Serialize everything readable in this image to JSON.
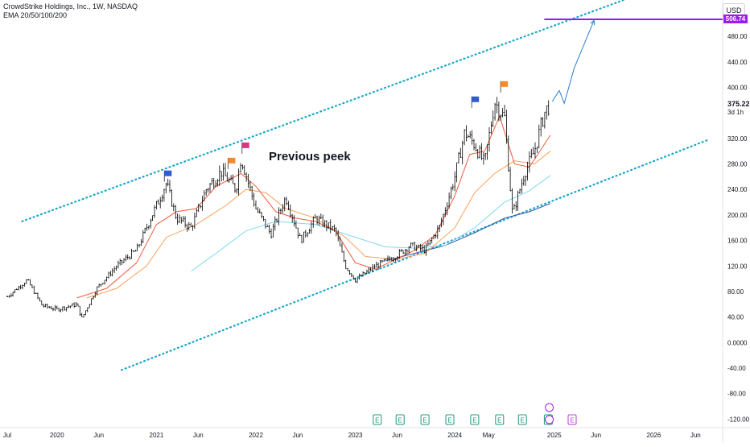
{
  "header": {
    "title": "CrowdStrike Holdings, Inc., 1W, NASDAQ",
    "indicator": "EMA 20/50/100/200"
  },
  "currency": "USD",
  "last_price": "375.22",
  "last_price_sub": "3d 1h",
  "target_price": "506.74",
  "annotation": "Previous peek",
  "colors": {
    "candle": "#000000",
    "ema20": "#f05a3c",
    "ema50": "#f8a25a",
    "ema100": "#7fd8f0",
    "ema200": "#3355a8",
    "channel": "#1aa7c9",
    "target_line": "#9b1cf0",
    "projection": "#2a7fd1"
  },
  "chart_data": {
    "type": "candlestick",
    "title": "CrowdStrike Holdings, Inc., 1W, NASDAQ",
    "y_ticks": [
      "480.00",
      "440.00",
      "400.00",
      "320.00",
      "280.00",
      "240.00",
      "200.00",
      "160.00",
      "120.00",
      "80.00",
      "40.00",
      "0.0000",
      "-40.00",
      "-80.00",
      "-120.00"
    ],
    "x_ticks": [
      "Jul",
      "2020",
      "Jun",
      "2021",
      "Jun",
      "2022",
      "Jun",
      "2023",
      "Jun",
      "2024",
      "May",
      "2025",
      "Jun",
      "2026",
      "Jun"
    ],
    "ylim": [
      -135,
      525
    ],
    "price_path": [
      {
        "t": 2019.5,
        "y": 72
      },
      {
        "t": 2019.7,
        "y": 98
      },
      {
        "t": 2019.85,
        "y": 58
      },
      {
        "t": 2020.0,
        "y": 52
      },
      {
        "t": 2020.2,
        "y": 60
      },
      {
        "t": 2020.25,
        "y": 38
      },
      {
        "t": 2020.4,
        "y": 85
      },
      {
        "t": 2020.6,
        "y": 120
      },
      {
        "t": 2020.8,
        "y": 145
      },
      {
        "t": 2021.0,
        "y": 215
      },
      {
        "t": 2021.1,
        "y": 250
      },
      {
        "t": 2021.2,
        "y": 195
      },
      {
        "t": 2021.35,
        "y": 180
      },
      {
        "t": 2021.5,
        "y": 240
      },
      {
        "t": 2021.65,
        "y": 268
      },
      {
        "t": 2021.8,
        "y": 240
      },
      {
        "t": 2021.85,
        "y": 290
      },
      {
        "t": 2022.0,
        "y": 210
      },
      {
        "t": 2022.15,
        "y": 170
      },
      {
        "t": 2022.3,
        "y": 228
      },
      {
        "t": 2022.45,
        "y": 160
      },
      {
        "t": 2022.6,
        "y": 195
      },
      {
        "t": 2022.8,
        "y": 175
      },
      {
        "t": 2022.9,
        "y": 120
      },
      {
        "t": 2023.0,
        "y": 98
      },
      {
        "t": 2023.2,
        "y": 120
      },
      {
        "t": 2023.4,
        "y": 135
      },
      {
        "t": 2023.55,
        "y": 152
      },
      {
        "t": 2023.7,
        "y": 145
      },
      {
        "t": 2023.85,
        "y": 182
      },
      {
        "t": 2024.0,
        "y": 260
      },
      {
        "t": 2024.1,
        "y": 330
      },
      {
        "t": 2024.2,
        "y": 310
      },
      {
        "t": 2024.3,
        "y": 280
      },
      {
        "t": 2024.4,
        "y": 378
      },
      {
        "t": 2024.5,
        "y": 352
      },
      {
        "t": 2024.58,
        "y": 200
      },
      {
        "t": 2024.7,
        "y": 265
      },
      {
        "t": 2024.8,
        "y": 300
      },
      {
        "t": 2024.9,
        "y": 360
      },
      {
        "t": 2024.96,
        "y": 375
      }
    ],
    "ema20": [
      [
        2020.2,
        70
      ],
      [
        2020.5,
        85
      ],
      [
        2020.8,
        125
      ],
      [
        2021.0,
        185
      ],
      [
        2021.2,
        205
      ],
      [
        2021.4,
        210
      ],
      [
        2021.6,
        245
      ],
      [
        2021.85,
        265
      ],
      [
        2022.0,
        245
      ],
      [
        2022.2,
        205
      ],
      [
        2022.4,
        195
      ],
      [
        2022.6,
        190
      ],
      [
        2022.8,
        175
      ],
      [
        2023.0,
        125
      ],
      [
        2023.2,
        115
      ],
      [
        2023.4,
        130
      ],
      [
        2023.6,
        145
      ],
      [
        2023.8,
        168
      ],
      [
        2024.0,
        230
      ],
      [
        2024.15,
        295
      ],
      [
        2024.3,
        300
      ],
      [
        2024.45,
        355
      ],
      [
        2024.6,
        280
      ],
      [
        2024.75,
        275
      ],
      [
        2024.96,
        325
      ]
    ],
    "ema50": [
      [
        2020.3,
        70
      ],
      [
        2020.6,
        85
      ],
      [
        2020.9,
        120
      ],
      [
        2021.1,
        165
      ],
      [
        2021.4,
        185
      ],
      [
        2021.7,
        215
      ],
      [
        2021.9,
        240
      ],
      [
        2022.1,
        235
      ],
      [
        2022.3,
        210
      ],
      [
        2022.6,
        195
      ],
      [
        2022.9,
        165
      ],
      [
        2023.1,
        135
      ],
      [
        2023.4,
        130
      ],
      [
        2023.7,
        140
      ],
      [
        2024.0,
        180
      ],
      [
        2024.2,
        235
      ],
      [
        2024.4,
        265
      ],
      [
        2024.6,
        285
      ],
      [
        2024.8,
        280
      ],
      [
        2024.96,
        300
      ]
    ],
    "ema100": [
      [
        2021.35,
        112
      ],
      [
        2021.6,
        140
      ],
      [
        2021.9,
        175
      ],
      [
        2022.2,
        190
      ],
      [
        2022.6,
        185
      ],
      [
        2023.0,
        165
      ],
      [
        2023.3,
        150
      ],
      [
        2023.6,
        148
      ],
      [
        2023.9,
        152
      ],
      [
        2024.2,
        180
      ],
      [
        2024.5,
        220
      ],
      [
        2024.75,
        238
      ],
      [
        2024.96,
        262
      ]
    ],
    "ema200": [
      [
        2023.3,
        128
      ],
      [
        2023.6,
        140
      ],
      [
        2023.9,
        152
      ],
      [
        2024.2,
        172
      ],
      [
        2024.5,
        195
      ],
      [
        2024.75,
        205
      ],
      [
        2024.96,
        218
      ]
    ],
    "channel_upper": [
      [
        2019.65,
        190
      ],
      [
        2025.75,
        540
      ]
    ],
    "channel_lower": [
      [
        2020.65,
        -43
      ],
      [
        2026.55,
        318
      ]
    ],
    "projection": [
      [
        2024.98,
        378
      ],
      [
        2025.05,
        395
      ],
      [
        2025.1,
        375
      ],
      [
        2025.2,
        430
      ],
      [
        2025.4,
        505
      ]
    ],
    "target_level": 506.74,
    "flags": [
      {
        "t": 2021.08,
        "y": 252,
        "color": "#2f5bd6"
      },
      {
        "t": 2021.72,
        "y": 272,
        "color": "#f48a2a"
      },
      {
        "t": 2021.86,
        "y": 296,
        "color": "#e0337d"
      },
      {
        "t": 2024.17,
        "y": 368,
        "color": "#2f5bd6"
      },
      {
        "t": 2024.46,
        "y": 392,
        "color": "#f48a2a"
      }
    ],
    "earnings_markers": [
      2023.22,
      2023.45,
      2023.7,
      2023.95,
      2024.2,
      2024.45,
      2024.68,
      2024.94,
      2025.18
    ]
  }
}
